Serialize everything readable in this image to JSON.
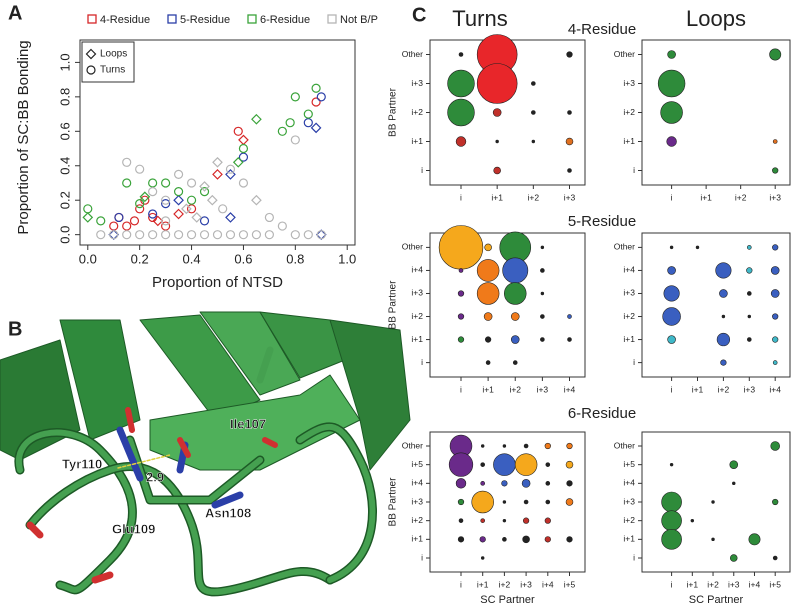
{
  "panel_labels": [
    "A",
    "B",
    "C"
  ],
  "structure": {
    "labels": [
      "Ile107",
      "Tyr110",
      "2.9",
      "Glu109",
      "Asn108"
    ]
  },
  "panel_c": {
    "columns": [
      "Turns",
      "Loops"
    ],
    "rows": [
      "4-Residue",
      "5-Residue",
      "6-Residue"
    ]
  },
  "chart_data": [
    {
      "type": "scatter",
      "xlabel": "Proportion of NTSD",
      "ylabel": "Proportion of SC:BB Bonding",
      "xlim": [
        -0.03,
        1.03
      ],
      "ylim": [
        -0.06,
        1.13
      ],
      "xticks": [
        {
          "value": 0,
          "label": "0.0"
        },
        {
          "value": 0.2,
          "label": "0.2"
        },
        {
          "value": 0.4,
          "label": "0.4"
        },
        {
          "value": 0.6,
          "label": "0.6"
        },
        {
          "value": 0.8,
          "label": "0.8"
        },
        {
          "value": 1,
          "label": "1.0"
        }
      ],
      "yticks": [
        {
          "value": 0,
          "label": "0.0"
        },
        {
          "value": 0.2,
          "label": "0.2"
        },
        {
          "value": 0.4,
          "label": "0.4"
        },
        {
          "value": 0.6,
          "label": "0.6"
        },
        {
          "value": 0.8,
          "label": "0.8"
        },
        {
          "value": 1,
          "label": "1.0"
        }
      ],
      "shapes": [
        {
          "name": "Loops",
          "marker": "diamond"
        },
        {
          "name": "Turns",
          "marker": "circle"
        }
      ],
      "series": [
        {
          "name": "4-Residue",
          "color": "#d62728",
          "x": [
            0.58,
            0.6,
            0.88,
            0.22,
            0.2,
            0.25,
            0.3,
            0.15,
            0.12,
            0.18,
            0.35,
            0.4,
            0.5,
            0.27,
            0.1
          ],
          "values": [
            0.6,
            0.55,
            0.77,
            0.2,
            0.15,
            0.1,
            0.05,
            0.05,
            0.1,
            0.08,
            0.12,
            0.15,
            0.35,
            0.08,
            0.05
          ],
          "markers": [
            "circle",
            "diamond",
            "circle",
            "circle",
            "circle",
            "circle",
            "circle",
            "circle",
            "circle",
            "circle",
            "diamond",
            "circle",
            "diamond",
            "diamond",
            "circle"
          ]
        },
        {
          "name": "5-Residue",
          "color": "#2b3fa8",
          "x": [
            0.9,
            0.88,
            0.85,
            0.9,
            0.6,
            0.55,
            0.1,
            0.12,
            0.3,
            0.35,
            0.25,
            0.45,
            0.55
          ],
          "values": [
            0.8,
            0.62,
            0.65,
            0,
            0.45,
            0.35,
            0,
            0.1,
            0.18,
            0.2,
            0.12,
            0.08,
            0.1
          ],
          "markers": [
            "circle",
            "diamond",
            "circle",
            "diamond",
            "circle",
            "diamond",
            "diamond",
            "circle",
            "circle",
            "diamond",
            "circle",
            "circle",
            "diamond"
          ]
        },
        {
          "name": "6-Residue",
          "color": "#3aa33a",
          "x": [
            0.88,
            0.8,
            0.85,
            0.78,
            0.65,
            0.75,
            0.6,
            0.58,
            0.3,
            0.25,
            0.35,
            0.4,
            0.22,
            0,
            0,
            0.05,
            0.2,
            0.15,
            0.45
          ],
          "values": [
            0.85,
            0.8,
            0.7,
            0.65,
            0.67,
            0.6,
            0.5,
            0.42,
            0.3,
            0.3,
            0.25,
            0.2,
            0.22,
            0.15,
            0.1,
            0.08,
            0.18,
            0.3,
            0.25
          ],
          "markers": [
            "circle",
            "circle",
            "circle",
            "circle",
            "diamond",
            "circle",
            "circle",
            "diamond",
            "circle",
            "circle",
            "circle",
            "circle",
            "diamond",
            "circle",
            "diamond",
            "circle",
            "circle",
            "circle",
            "circle"
          ]
        },
        {
          "name": "Not B/P",
          "color": "#b5b5b5",
          "x": [
            0.05,
            0.1,
            0.15,
            0.2,
            0.25,
            0.3,
            0.35,
            0.4,
            0.45,
            0.5,
            0.55,
            0.6,
            0.65,
            0.7,
            0.8,
            0.85,
            0.9,
            0.15,
            0.2,
            0.25,
            0.3,
            0.35,
            0.4,
            0.45,
            0.5,
            0.55,
            0.6,
            0.7,
            0.75,
            0.8,
            0.65,
            0.42,
            0.38,
            0.48,
            0.52,
            0.3
          ],
          "values": [
            0,
            0,
            0,
            0,
            0,
            0,
            0,
            0,
            0,
            0,
            0,
            0,
            0,
            0,
            0,
            0,
            0,
            0.42,
            0.38,
            0.25,
            0.2,
            0.35,
            0.3,
            0.28,
            0.42,
            0.38,
            0.3,
            0.1,
            0.05,
            0.55,
            0.2,
            0.1,
            0.15,
            0.2,
            0.15,
            0.08
          ],
          "markers": [
            "circle",
            "circle",
            "circle",
            "circle",
            "circle",
            "circle",
            "circle",
            "circle",
            "circle",
            "circle",
            "circle",
            "circle",
            "circle",
            "circle",
            "circle",
            "circle",
            "circle",
            "circle",
            "circle",
            "circle",
            "circle",
            "circle",
            "circle",
            "diamond",
            "diamond",
            "circle",
            "circle",
            "circle",
            "circle",
            "circle",
            "diamond",
            "diamond",
            "diamond",
            "diamond",
            "circle",
            "circle"
          ]
        }
      ]
    },
    {
      "type": "bubble",
      "ylabel": "BB Partner",
      "xcategories": [
        "i",
        "i+1",
        "i+2",
        "i+3"
      ],
      "ycategories": [
        "i",
        "i+1",
        "i+2",
        "i+3",
        "Other"
      ],
      "points": {
        "x": [
          "i+1",
          "i+1",
          "i",
          "i",
          "i",
          "i+1",
          "i+1",
          "i",
          "i+3",
          "i+2",
          "i+2",
          "i+3",
          "i+3",
          "i+3",
          "i+2",
          "i+1"
        ],
        "y": [
          "Other",
          "i+3",
          "i+3",
          "i+2",
          "i+1",
          "i+2",
          "i",
          "Other",
          "Other",
          "i+3",
          "i+2",
          "i+2",
          "i+1",
          "i",
          "i+1",
          "i+1"
        ],
        "size": [
          1,
          1,
          0.45,
          0.45,
          0.06,
          0.04,
          0.03,
          0.01,
          0.02,
          0.01,
          0.01,
          0.01,
          0.03,
          0.01,
          0.005,
          0.005
        ],
        "color": [
          "#e8262a",
          "#e8262a",
          "#2e8b3a",
          "#2e8b3a",
          "#c0302a",
          "#c0302a",
          "#c0302a",
          "#222",
          "#222",
          "#222",
          "#222",
          "#222",
          "#e07020",
          "#222",
          "#222",
          "#222"
        ]
      }
    },
    {
      "type": "bubble",
      "xcategories": [
        "i",
        "i+1",
        "i+2",
        "i+3"
      ],
      "ycategories": [
        "i",
        "i+1",
        "i+2",
        "i+3",
        "Other"
      ],
      "points": {
        "x": [
          "i",
          "i+3",
          "i",
          "i",
          "i",
          "i+3",
          "i+3"
        ],
        "y": [
          "Other",
          "Other",
          "i+3",
          "i+2",
          "i+1",
          "i+1",
          "i"
        ],
        "size": [
          0.04,
          0.08,
          0.45,
          0.3,
          0.06,
          0.01,
          0.02
        ],
        "color": [
          "#2e8b3a",
          "#2e8b3a",
          "#2e8b3a",
          "#2e8b3a",
          "#6a2a8a",
          "#e07020",
          "#2e8b3a"
        ]
      }
    },
    {
      "type": "bubble",
      "ylabel": "BB Partner",
      "xcategories": [
        "i",
        "i+1",
        "i+2",
        "i+3",
        "i+4"
      ],
      "ycategories": [
        "i",
        "i+1",
        "i+2",
        "i+3",
        "i+4",
        "Other"
      ],
      "points": {
        "x": [
          "i",
          "i+1",
          "i+2",
          "i+3",
          "i",
          "i+1",
          "i+2",
          "i+3",
          "i",
          "i+1",
          "i+2",
          "i+3",
          "i",
          "i+1",
          "i+2",
          "i+3",
          "i+4",
          "i",
          "i+1",
          "i+2",
          "i+3",
          "i+4",
          "i+1",
          "i+2"
        ],
        "y": [
          "Other",
          "Other",
          "Other",
          "Other",
          "i+4",
          "i+4",
          "i+4",
          "i+4",
          "i+3",
          "i+3",
          "i+3",
          "i+3",
          "i+2",
          "i+2",
          "i+2",
          "i+2",
          "i+2",
          "i+1",
          "i+1",
          "i+1",
          "i+1",
          "i+1",
          "i",
          "i"
        ],
        "size": [
          1.2,
          0.03,
          0.6,
          0.005,
          0.01,
          0.3,
          0.4,
          0.01,
          0.02,
          0.3,
          0.3,
          0.005,
          0.02,
          0.04,
          0.04,
          0.01,
          0.01,
          0.02,
          0.02,
          0.04,
          0.01,
          0.01,
          0.01,
          0.01
        ],
        "color": [
          "#f5a81c",
          "#f5a81c",
          "#2e8b3a",
          "#222",
          "#6a2a8a",
          "#f07a1a",
          "#3a5fc0",
          "#222",
          "#6a2a8a",
          "#f07a1a",
          "#2e8b3a",
          "#222",
          "#6a2a8a",
          "#f07a1a",
          "#f07a1a",
          "#222",
          "#3a5fc0",
          "#2e8b3a",
          "#222",
          "#3a5fc0",
          "#222",
          "#222",
          "#222",
          "#222"
        ]
      }
    },
    {
      "type": "bubble",
      "xcategories": [
        "i",
        "i+1",
        "i+2",
        "i+3",
        "i+4"
      ],
      "ycategories": [
        "i",
        "i+1",
        "i+2",
        "i+3",
        "i+4",
        "Other"
      ],
      "points": {
        "x": [
          "i",
          "i+1",
          "i+3",
          "i+4",
          "i",
          "i+2",
          "i+3",
          "i+4",
          "i",
          "i+2",
          "i+3",
          "i+4",
          "i",
          "i+2",
          "i+3",
          "i+4",
          "i",
          "i+2",
          "i+3",
          "i+4",
          "i+2",
          "i+4"
        ],
        "y": [
          "Other",
          "Other",
          "Other",
          "Other",
          "i+4",
          "i+4",
          "i+4",
          "i+4",
          "i+3",
          "i+3",
          "i+3",
          "i+3",
          "i+2",
          "i+2",
          "i+2",
          "i+2",
          "i+1",
          "i+1",
          "i+1",
          "i+1",
          "i",
          "i"
        ],
        "size": [
          0.005,
          0.005,
          0.01,
          0.02,
          0.04,
          0.15,
          0.02,
          0.04,
          0.15,
          0.04,
          0.01,
          0.04,
          0.2,
          0.005,
          0.005,
          0.02,
          0.04,
          0.1,
          0.01,
          0.02,
          0.02,
          0.01
        ],
        "color": [
          "#222",
          "#222",
          "#3fb8c8",
          "#3a5fc0",
          "#3a5fc0",
          "#3a5fc0",
          "#3fb8c8",
          "#3a5fc0",
          "#3a5fc0",
          "#3a5fc0",
          "#222",
          "#3a5fc0",
          "#3a5fc0",
          "#222",
          "#222",
          "#3a5fc0",
          "#3fb8c8",
          "#3a5fc0",
          "#222",
          "#3fb8c8",
          "#3a5fc0",
          "#3fb8c8"
        ]
      }
    },
    {
      "type": "bubble",
      "ylabel": "BB Partner",
      "xlabel": "SC Partner",
      "xcategories": [
        "i",
        "i+1",
        "i+2",
        "i+3",
        "i+4",
        "i+5"
      ],
      "ycategories": [
        "i",
        "i+1",
        "i+2",
        "i+3",
        "i+4",
        "i+5",
        "Other"
      ],
      "points": {
        "x": [
          "i",
          "i+1",
          "i+2",
          "i+3",
          "i+4",
          "i+5",
          "i",
          "i+1",
          "i+2",
          "i+3",
          "i+4",
          "i+5",
          "i",
          "i+1",
          "i+2",
          "i+3",
          "i+4",
          "i+5",
          "i",
          "i+1",
          "i+2",
          "i+3",
          "i+4",
          "i+5",
          "i",
          "i+1",
          "i+2",
          "i+3",
          "i+4",
          "i",
          "i+1",
          "i+2",
          "i+3",
          "i+4",
          "i+5",
          "i+1"
        ],
        "y": [
          "Other",
          "Other",
          "Other",
          "Other",
          "Other",
          "Other",
          "i+5",
          "i+5",
          "i+5",
          "i+5",
          "i+5",
          "i+5",
          "i+4",
          "i+4",
          "i+4",
          "i+4",
          "i+4",
          "i+4",
          "i+3",
          "i+3",
          "i+3",
          "i+3",
          "i+3",
          "i+3",
          "i+2",
          "i+2",
          "i+2",
          "i+2",
          "i+2",
          "i+1",
          "i+1",
          "i+1",
          "i+1",
          "i+1",
          "i+1",
          "i"
        ],
        "size": [
          0.3,
          0.005,
          0.005,
          0.01,
          0.02,
          0.02,
          0.35,
          0.01,
          0.3,
          0.3,
          0.01,
          0.03,
          0.06,
          0.01,
          0.02,
          0.04,
          0.01,
          0.02,
          0.02,
          0.3,
          0.005,
          0.01,
          0.01,
          0.03,
          0.01,
          0.01,
          0.005,
          0.02,
          0.02,
          0.02,
          0.02,
          0.01,
          0.03,
          0.02,
          0.02,
          0.005
        ],
        "color": [
          "#6a2a8a",
          "#222",
          "#222",
          "#222",
          "#f07a1a",
          "#f07a1a",
          "#6a2a8a",
          "#222",
          "#3a5fc0",
          "#f5a81c",
          "#222",
          "#f5a81c",
          "#6a2a8a",
          "#6a2a8a",
          "#3a5fc0",
          "#3a5fc0",
          "#222",
          "#222",
          "#2e8b3a",
          "#f5a81c",
          "#222",
          "#222",
          "#222",
          "#f07a1a",
          "#222",
          "#c0302a",
          "#222",
          "#c0302a",
          "#c0302a",
          "#222",
          "#6a2a8a",
          "#222",
          "#222",
          "#c0302a",
          "#222",
          "#222"
        ]
      }
    },
    {
      "type": "bubble",
      "xlabel": "SC Partner",
      "xcategories": [
        "i",
        "i+1",
        "i+2",
        "i+3",
        "i+4",
        "i+5"
      ],
      "ycategories": [
        "i",
        "i+1",
        "i+2",
        "i+3",
        "i+4",
        "i+5",
        "Other"
      ],
      "points": {
        "x": [
          "i+5",
          "i",
          "i+3",
          "i+3",
          "i",
          "i+2",
          "i+5",
          "i",
          "i+1",
          "i",
          "i+2",
          "i+4",
          "i+3",
          "i+5"
        ],
        "y": [
          "Other",
          "i+5",
          "i+5",
          "i+4",
          "i+3",
          "i+3",
          "i+3",
          "i+2",
          "i+2",
          "i+1",
          "i+1",
          "i+1",
          "i",
          "i"
        ],
        "size": [
          0.05,
          0.005,
          0.04,
          0.005,
          0.25,
          0.005,
          0.02,
          0.25,
          0.005,
          0.25,
          0.005,
          0.08,
          0.03,
          0.01
        ],
        "color": [
          "#2e8b3a",
          "#222",
          "#2e8b3a",
          "#222",
          "#2e8b3a",
          "#222",
          "#2e8b3a",
          "#2e8b3a",
          "#222",
          "#2e8b3a",
          "#222",
          "#2e8b3a",
          "#2e8b3a",
          "#222"
        ]
      }
    }
  ]
}
